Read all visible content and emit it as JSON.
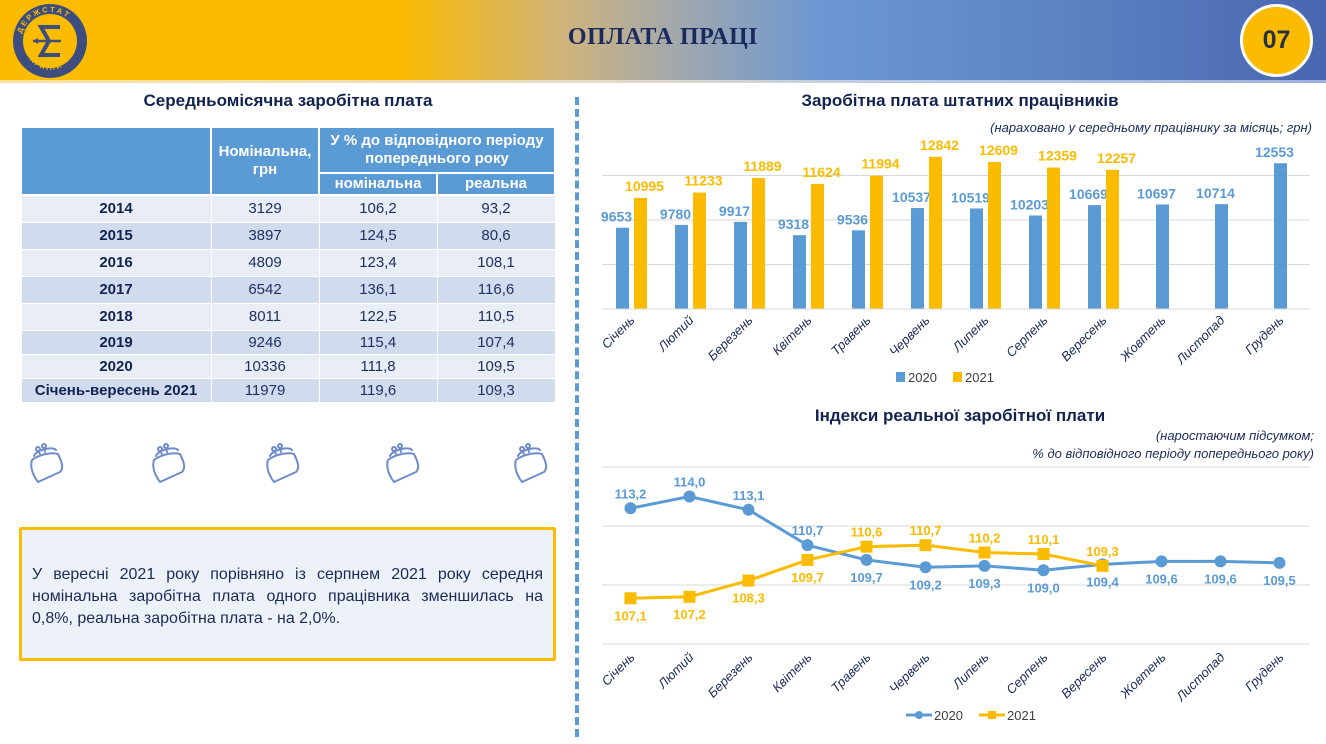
{
  "header": {
    "title": "ОПЛАТА ПРАЦІ",
    "page_number": "07",
    "logo_text_top": "ДЕРЖСТАТ",
    "logo_text_bottom": "УКРАЇНИ"
  },
  "left_panel": {
    "title": "Середньомісячна заробітна плата",
    "table": {
      "headers": {
        "nominal": "Номінальна, грн",
        "percent_group": "У % до відповідного періоду попереднього року",
        "percent_nominal": "номінальна",
        "percent_real": "реальна"
      },
      "rows": [
        {
          "period": "2014",
          "nominal": "3129",
          "pct_nominal": "106,2",
          "pct_real": "93,2"
        },
        {
          "period": "2015",
          "nominal": "3897",
          "pct_nominal": "124,5",
          "pct_real": "80,6"
        },
        {
          "period": "2016",
          "nominal": "4809",
          "pct_nominal": "123,4",
          "pct_real": "108,1"
        },
        {
          "period": "2017",
          "nominal": "6542",
          "pct_nominal": "136,1",
          "pct_real": "116,6"
        },
        {
          "period": "2018",
          "nominal": "8011",
          "pct_nominal": "122,5",
          "pct_real": "110,5"
        },
        {
          "period": "2019",
          "nominal": "9246",
          "pct_nominal": "115,4",
          "pct_real": "107,4"
        },
        {
          "period": "2020",
          "nominal": "10336",
          "pct_nominal": "111,8",
          "pct_real": "109,5"
        },
        {
          "period": "Січень-вересень 2021",
          "nominal": "11979",
          "pct_nominal": "119,6",
          "pct_real": "109,3"
        }
      ]
    },
    "decor_icons": [
      "purse-icon",
      "purse-icon",
      "purse-icon",
      "purse-icon",
      "purse-icon"
    ],
    "note": "У вересні 2021 року порівняно із серпнем 2021 року середня номінальна заробітна плата одного працівника зменшилась на 0,8%, реальна заробітна плата - на 2,0%."
  },
  "colors": {
    "blue": "#5b9bd5",
    "gold": "#fbbb00",
    "navy": "#13234f",
    "grid": "#d9d9d9"
  },
  "chart_data": [
    {
      "type": "bar",
      "title": "Заробітна плата штатних працівників",
      "subtitle": "(нараховано у середньому працівнику за місяць; грн)",
      "xlabel": "",
      "ylabel": "",
      "categories": [
        "Січень",
        "Лютий",
        "Березень",
        "Квітень",
        "Травень",
        "Червень",
        "Липень",
        "Серпень",
        "Вересень",
        "Жовтень",
        "Листопад",
        "Грудень"
      ],
      "series": [
        {
          "name": "2020",
          "values": [
            9653,
            9780,
            9917,
            9318,
            9536,
            10537,
            10519,
            10203,
            10669,
            10697,
            10714,
            12553
          ]
        },
        {
          "name": "2021",
          "values": [
            10995,
            11233,
            11889,
            11624,
            11994,
            12842,
            12609,
            12359,
            12257,
            null,
            null,
            null
          ]
        }
      ],
      "ylim": [
        6000,
        14000
      ],
      "ygrid_step": 2000,
      "grid": true,
      "y_tick_labels_visible": false,
      "legend": "bottom"
    },
    {
      "type": "line",
      "title": "Індекси реальної заробітної плати",
      "subtitle_line1": "(наростаючим підсумком;",
      "subtitle_line2": "% до відповідного періоду попереднього року)",
      "xlabel": "",
      "ylabel": "",
      "categories": [
        "Січень",
        "Лютий",
        "Березень",
        "Квітень",
        "Травень",
        "Червень",
        "Липень",
        "Серпень",
        "Вересень",
        "Жовтень",
        "Листопад",
        "Грудень"
      ],
      "series": [
        {
          "name": "2020",
          "marker": "circle",
          "values": [
            113.2,
            114.0,
            113.1,
            110.7,
            109.7,
            109.2,
            109.3,
            109.0,
            109.4,
            109.6,
            109.6,
            109.5
          ],
          "labels": [
            "113,2",
            "114,0",
            "113,1",
            "110,7",
            "109,7",
            "109,2",
            "109,3",
            "109,0",
            "109,4",
            "109,6",
            "109,6",
            "109,5"
          ]
        },
        {
          "name": "2021",
          "marker": "square",
          "values": [
            107.1,
            107.2,
            108.3,
            109.7,
            110.6,
            110.7,
            110.2,
            110.1,
            109.3,
            null,
            null,
            null
          ],
          "labels": [
            "107,1",
            "107,2",
            "108,3",
            "109,7",
            "110,6",
            "110,7",
            "110,2",
            "110,1",
            "109,3",
            "",
            "",
            ""
          ]
        }
      ],
      "ylim": [
        104,
        116
      ],
      "ygrid_step": 4,
      "grid": true,
      "y_tick_labels_visible": false,
      "legend": "bottom"
    }
  ]
}
